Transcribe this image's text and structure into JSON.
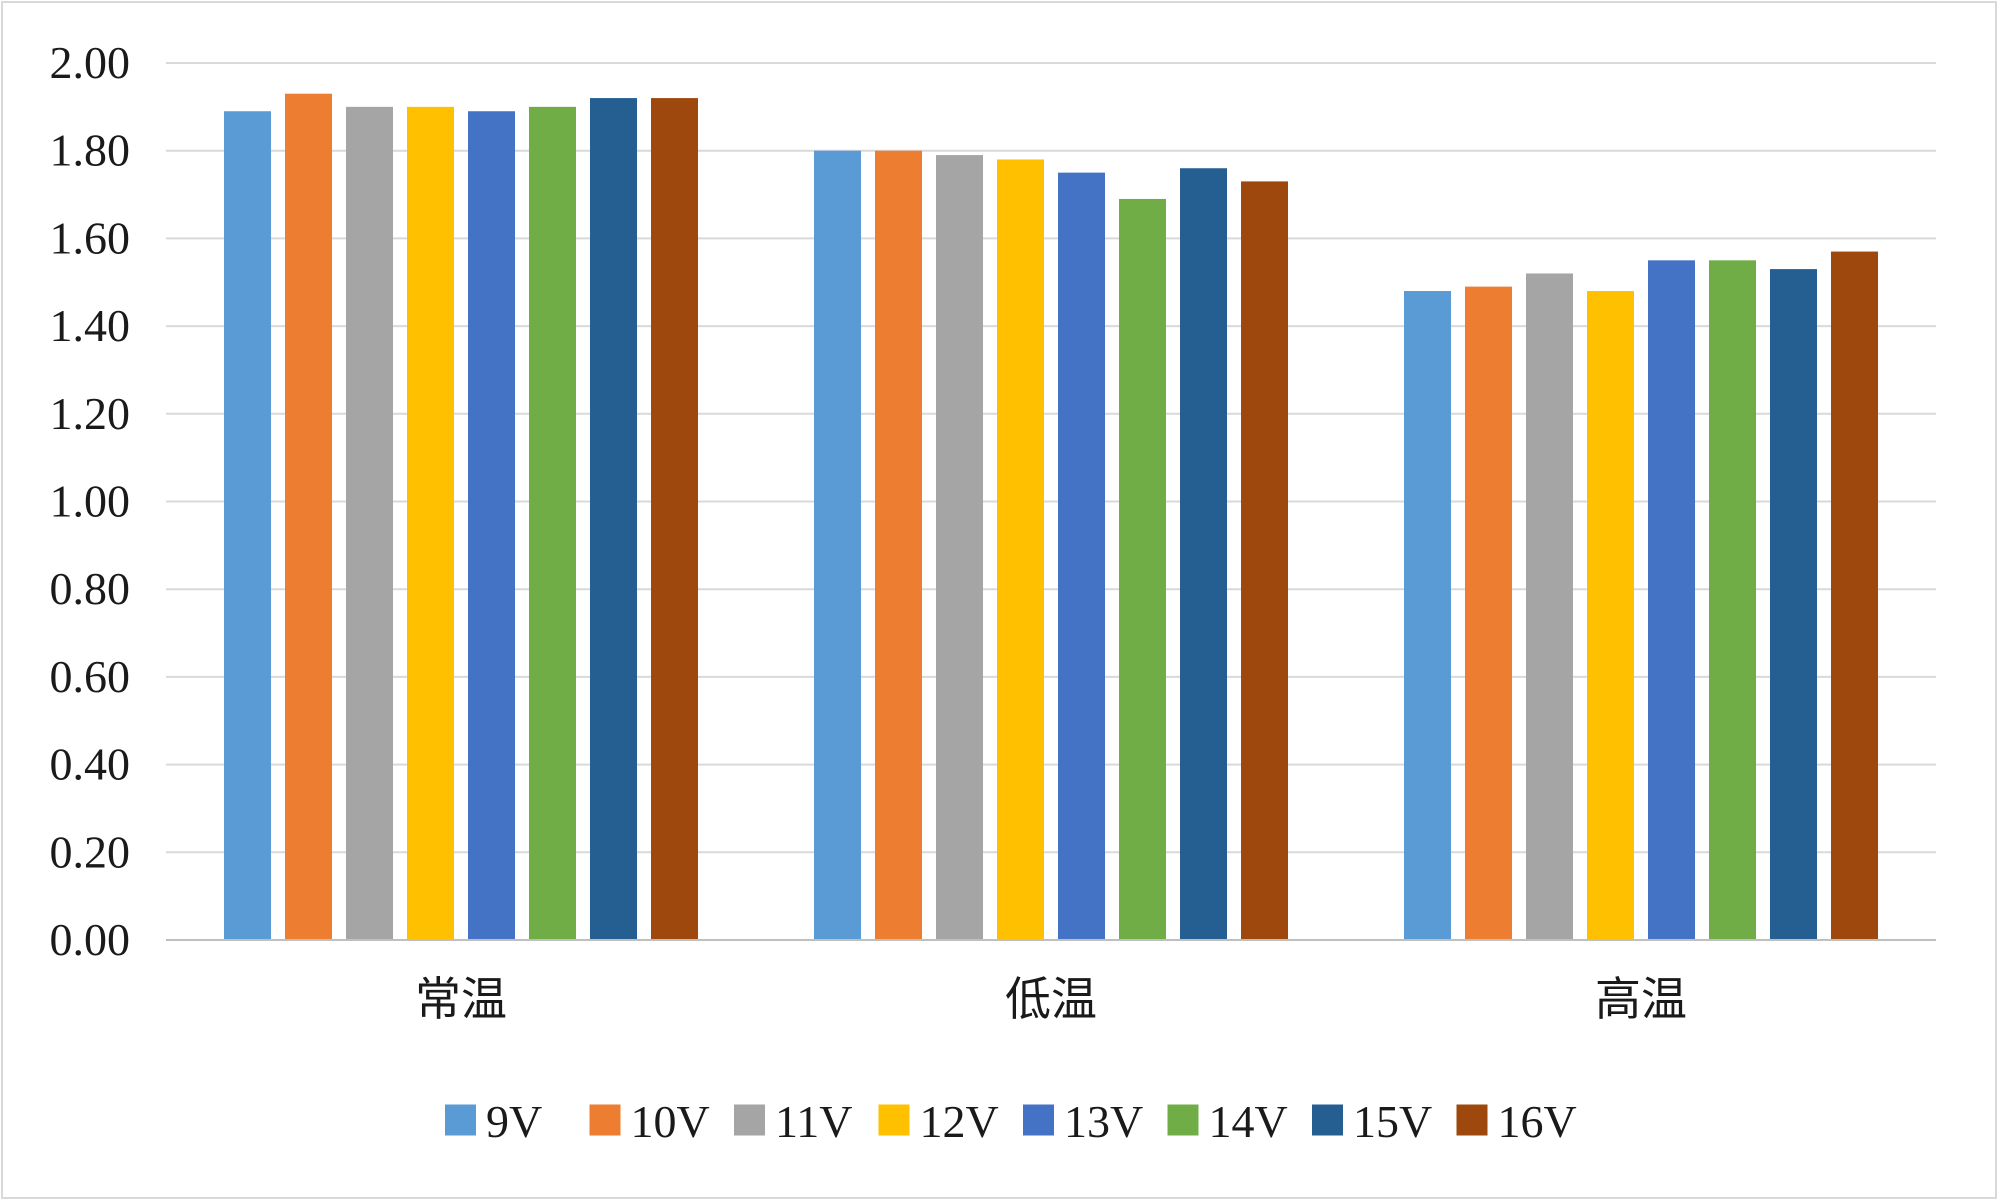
{
  "chart_data": {
    "type": "bar",
    "title": "",
    "xlabel": "",
    "ylabel": "",
    "ylim": [
      0,
      2.0
    ],
    "yticks": [
      "0.00",
      "0.20",
      "0.40",
      "0.60",
      "0.80",
      "1.00",
      "1.20",
      "1.40",
      "1.60",
      "1.80",
      "2.00"
    ],
    "ytick_values": [
      0,
      0.2,
      0.4,
      0.6,
      0.8,
      1.0,
      1.2,
      1.4,
      1.6,
      1.8,
      2.0
    ],
    "grid": true,
    "legend_position": "bottom",
    "categories": [
      "常温",
      "低温",
      "高温"
    ],
    "series": [
      {
        "name": "9V",
        "color": "#5b9bd5",
        "values": [
          1.89,
          1.8,
          1.48
        ]
      },
      {
        "name": "10V",
        "color": "#ed7d31",
        "values": [
          1.93,
          1.8,
          1.49
        ]
      },
      {
        "name": "11V",
        "color": "#a5a5a5",
        "values": [
          1.9,
          1.79,
          1.52
        ]
      },
      {
        "name": "12V",
        "color": "#ffc000",
        "values": [
          1.9,
          1.78,
          1.48
        ]
      },
      {
        "name": "13V",
        "color": "#4472c4",
        "values": [
          1.89,
          1.75,
          1.55
        ]
      },
      {
        "name": "14V",
        "color": "#70ad47",
        "values": [
          1.9,
          1.69,
          1.55
        ]
      },
      {
        "name": "15V",
        "color": "#255e91",
        "values": [
          1.92,
          1.76,
          1.53
        ]
      },
      {
        "name": "16V",
        "color": "#9e480e",
        "values": [
          1.92,
          1.73,
          1.57
        ]
      }
    ]
  }
}
